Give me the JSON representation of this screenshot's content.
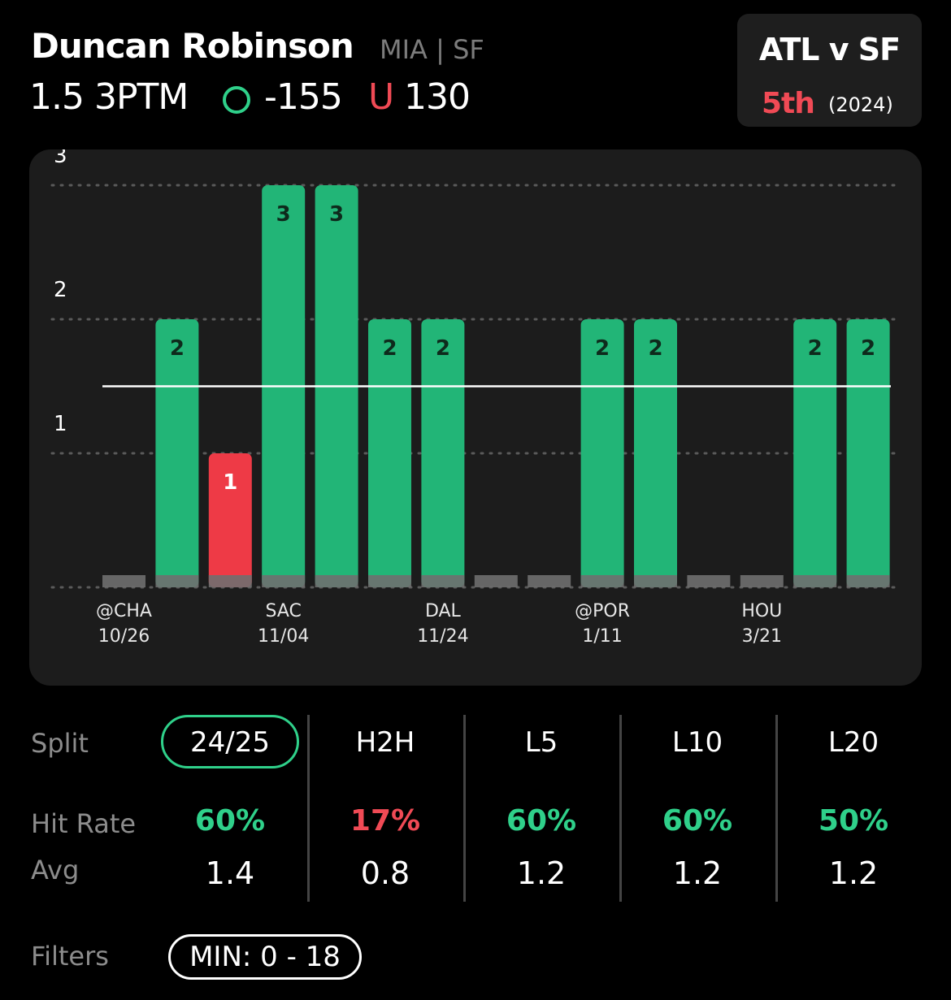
{
  "header": {
    "player_name": "Duncan Robinson",
    "team_info": "MIA | SF",
    "prop_line": "1.5 3PTM",
    "over_label": "O",
    "over_odds": "-155",
    "under_label": "U",
    "under_odds": "130"
  },
  "matchup": {
    "title": "ATL v SF",
    "rank": "5th",
    "year": "(2024)"
  },
  "colors": {
    "over": "#2fd08a",
    "bar_hit": "#22b577",
    "bar_miss": "#ee3a46",
    "under": "#f04a55",
    "muted": "#6f6f6f"
  },
  "chart_data": {
    "type": "bar",
    "line_value": 1.5,
    "ylim": [
      0,
      3
    ],
    "yticks": [
      "1",
      "2",
      "3"
    ],
    "values": [
      0,
      2,
      1,
      3,
      3,
      2,
      2,
      0,
      0,
      2,
      2,
      0,
      0,
      2,
      2
    ],
    "bar_labels": [
      "",
      "2",
      "1",
      "3",
      "3",
      "2",
      "2",
      "",
      "",
      "2",
      "2",
      "",
      "",
      "2",
      "2"
    ],
    "x_labels": [
      {
        "index": 0,
        "opponent": "@CHA",
        "date": "10/26"
      },
      {
        "index": 3,
        "opponent": "SAC",
        "date": "11/04"
      },
      {
        "index": 6,
        "opponent": "DAL",
        "date": "11/24"
      },
      {
        "index": 9,
        "opponent": "@POR",
        "date": "1/11"
      },
      {
        "index": 12,
        "opponent": "HOU",
        "date": "3/21"
      }
    ]
  },
  "stats": {
    "labels": {
      "split": "Split",
      "hit_rate": "Hit Rate",
      "avg": "Avg"
    },
    "columns": [
      {
        "head": "24/25",
        "hit_rate": "60%",
        "hit_color": "#2fd08a",
        "avg": "1.4",
        "selected": true
      },
      {
        "head": "H2H",
        "hit_rate": "17%",
        "hit_color": "#f04a55",
        "avg": "0.8",
        "selected": false
      },
      {
        "head": "L5",
        "hit_rate": "60%",
        "hit_color": "#2fd08a",
        "avg": "1.2",
        "selected": false
      },
      {
        "head": "L10",
        "hit_rate": "60%",
        "hit_color": "#2fd08a",
        "avg": "1.2",
        "selected": false
      },
      {
        "head": "L20",
        "hit_rate": "50%",
        "hit_color": "#2fd08a",
        "avg": "1.2",
        "selected": false
      }
    ]
  },
  "filters": {
    "label": "Filters",
    "min_filter": "MIN: 0 - 18"
  }
}
